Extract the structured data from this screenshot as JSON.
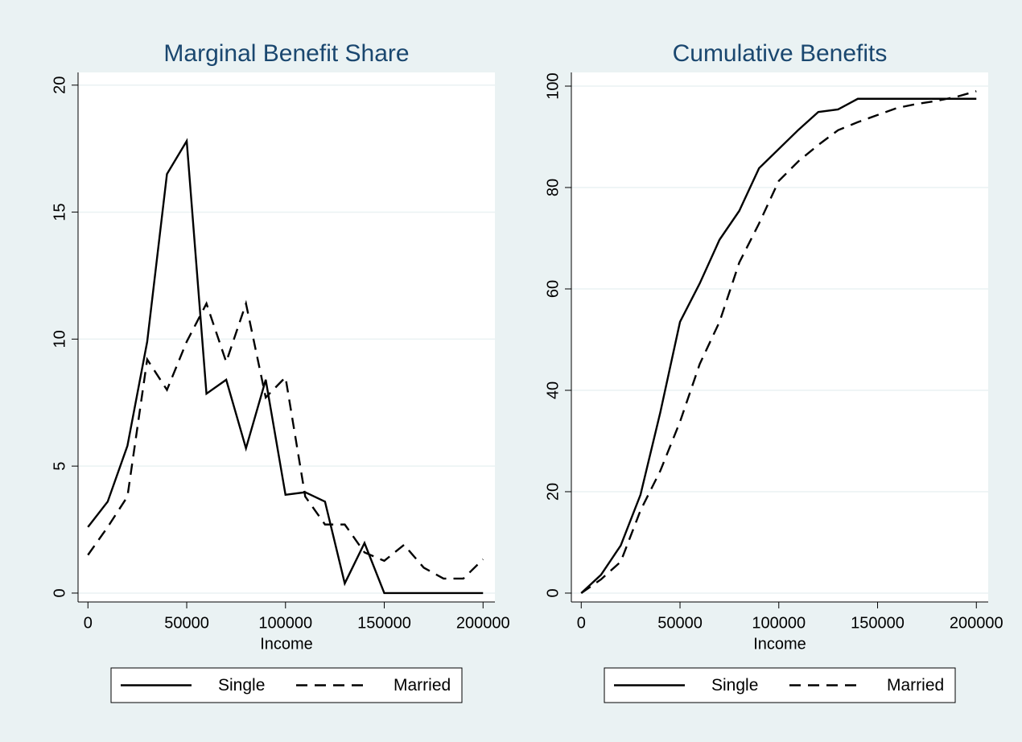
{
  "chart_data": [
    {
      "type": "line",
      "title": "Marginal Benefit Share",
      "x_label": "Income",
      "x": [
        0,
        10000,
        20000,
        30000,
        40000,
        50000,
        60000,
        70000,
        80000,
        90000,
        100000,
        110000,
        120000,
        130000,
        140000,
        150000,
        160000,
        170000,
        180000,
        190000,
        200000
      ],
      "series": [
        {
          "name": "Single",
          "color": "#000000",
          "line_style": "solid",
          "values": [
            2.6,
            3.6,
            5.8,
            9.9,
            16.5,
            17.8,
            7.85,
            8.4,
            5.7,
            8.4,
            3.87,
            3.97,
            3.6,
            0.38,
            1.97,
            0,
            0,
            0,
            0,
            0,
            0
          ]
        },
        {
          "name": "Married",
          "color": "#000000",
          "line_style": "dashed",
          "values": [
            1.5,
            2.6,
            3.8,
            9.2,
            8.0,
            9.9,
            11.4,
            9.1,
            11.4,
            7.7,
            8.5,
            3.8,
            2.7,
            2.7,
            1.6,
            1.27,
            1.9,
            1.0,
            0.57,
            0.57,
            1.33
          ]
        }
      ],
      "xlim": [
        -5000,
        206000
      ],
      "ylim": [
        -0.35,
        20.5
      ],
      "xticks": [
        0,
        50000,
        100000,
        150000,
        200000
      ],
      "yticks": [
        0,
        5,
        10,
        15,
        20
      ],
      "grid": true,
      "legend": "bottom"
    },
    {
      "type": "line",
      "title": "Cumulative Benefits",
      "x_label": "Income",
      "x": [
        0,
        10000,
        20000,
        30000,
        40000,
        50000,
        60000,
        70000,
        80000,
        90000,
        100000,
        110000,
        120000,
        130000,
        140000,
        150000,
        160000,
        170000,
        180000,
        190000,
        200000
      ],
      "series": [
        {
          "name": "Single",
          "color": "#000000",
          "line_style": "solid",
          "values": [
            0,
            3.6,
            9.4,
            19.4,
            35.6,
            53.5,
            61.1,
            69.7,
            75.4,
            83.8,
            87.6,
            91.4,
            94.9,
            95.4,
            97.5,
            97.5,
            97.5,
            97.5,
            97.5,
            97.5,
            97.5
          ]
        },
        {
          "name": "Married",
          "color": "#000000",
          "line_style": "dashed",
          "values": [
            0,
            2.7,
            6.2,
            16.3,
            24.1,
            33.8,
            45.2,
            53.5,
            65.2,
            72.9,
            81.3,
            85.2,
            88.4,
            91.3,
            92.9,
            94.3,
            95.7,
            96.5,
            97.1,
            97.9,
            99.0
          ]
        }
      ],
      "xlim": [
        -5000,
        206000
      ],
      "ylim": [
        -1.75,
        102.7
      ],
      "xticks": [
        0,
        50000,
        100000,
        150000,
        200000
      ],
      "yticks": [
        0,
        20,
        40,
        60,
        80,
        100
      ],
      "grid": true,
      "legend": "bottom"
    }
  ]
}
